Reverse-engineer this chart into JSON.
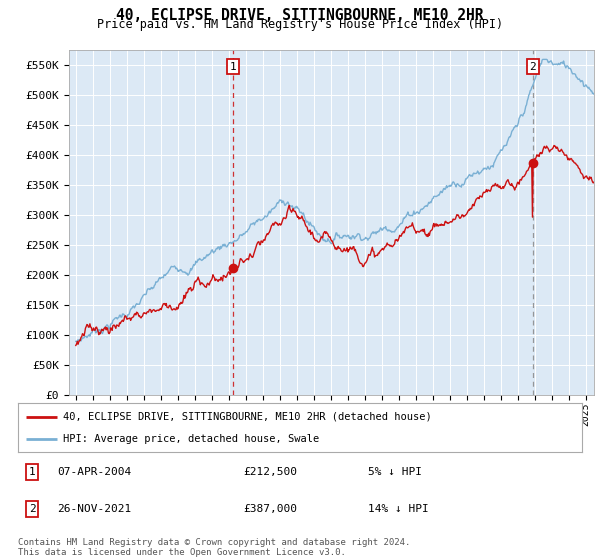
{
  "title": "40, ECLIPSE DRIVE, SITTINGBOURNE, ME10 2HR",
  "subtitle": "Price paid vs. HM Land Registry's House Price Index (HPI)",
  "ylabel_ticks": [
    "£0",
    "£50K",
    "£100K",
    "£150K",
    "£200K",
    "£250K",
    "£300K",
    "£350K",
    "£400K",
    "£450K",
    "£500K",
    "£550K"
  ],
  "ytick_vals": [
    0,
    50000,
    100000,
    150000,
    200000,
    250000,
    300000,
    350000,
    400000,
    450000,
    500000,
    550000
  ],
  "ylim": [
    0,
    575000
  ],
  "xlim_start": 1994.6,
  "xlim_end": 2025.5,
  "hpi_color": "#7ab0d4",
  "price_color": "#cc1111",
  "bg_color": "#dce9f5",
  "transaction1_x": 2004.27,
  "transaction1_y": 212500,
  "transaction2_x": 2021.9,
  "transaction2_y": 387000,
  "legend_line1": "40, ECLIPSE DRIVE, SITTINGBOURNE, ME10 2HR (detached house)",
  "legend_line2": "HPI: Average price, detached house, Swale",
  "note1_label": "1",
  "note1_date": "07-APR-2004",
  "note1_price": "£212,500",
  "note1_hpi": "5% ↓ HPI",
  "note2_label": "2",
  "note2_date": "26-NOV-2021",
  "note2_price": "£387,000",
  "note2_hpi": "14% ↓ HPI",
  "footer": "Contains HM Land Registry data © Crown copyright and database right 2024.\nThis data is licensed under the Open Government Licence v3.0."
}
